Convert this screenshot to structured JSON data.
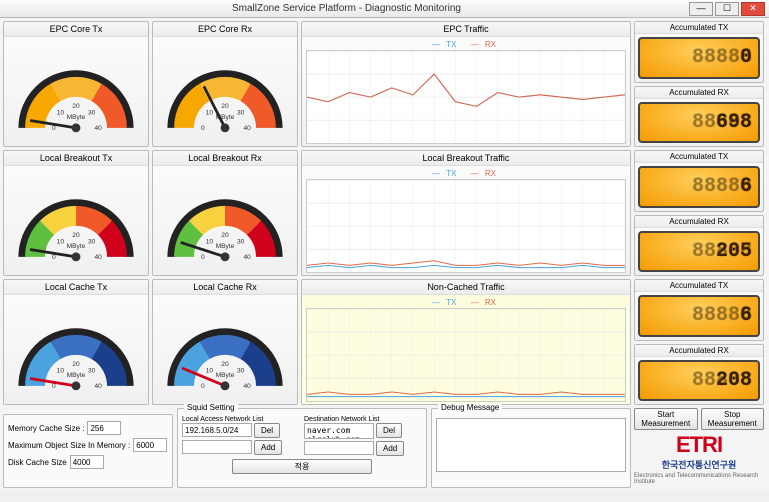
{
  "window": {
    "title": "SmallZone Service Platform - Diagnostic Monitoring"
  },
  "gauges": {
    "epc_tx": {
      "title": "EPC Core Tx",
      "value": 2,
      "max": 40,
      "unit": "MByte",
      "theme": "orange",
      "ticks": [
        0,
        10,
        20,
        30,
        40
      ],
      "arc_colors": [
        "#f6a800",
        "#f7b733",
        "#f05a28"
      ],
      "needle_color": "#222"
    },
    "epc_rx": {
      "title": "EPC Core Rx",
      "value": 14,
      "max": 40,
      "unit": "MByte",
      "theme": "orange",
      "ticks": [
        0,
        10,
        20,
        30,
        40
      ],
      "arc_colors": [
        "#f6a800",
        "#f7b733",
        "#f05a28"
      ],
      "needle_color": "#222"
    },
    "lb_tx": {
      "title": "Local Breakout Tx",
      "value": 2,
      "max": 40,
      "unit": "MByte",
      "theme": "rainbow",
      "ticks": [
        0,
        10,
        20,
        30,
        40
      ],
      "arc_colors": [
        "#5fbf3f",
        "#f7d23e",
        "#f05a28",
        "#d0021b"
      ],
      "needle_color": "#222"
    },
    "lb_rx": {
      "title": "Local Breakout Rx",
      "value": 4,
      "max": 40,
      "unit": "MByte",
      "theme": "rainbow",
      "ticks": [
        0,
        10,
        20,
        30,
        40
      ],
      "arc_colors": [
        "#5fbf3f",
        "#f7d23e",
        "#f05a28",
        "#d0021b"
      ],
      "needle_color": "#222"
    },
    "lc_tx": {
      "title": "Local Cache Tx",
      "value": 2,
      "max": 40,
      "unit": "MByte",
      "theme": "blue",
      "ticks": [
        0,
        10,
        20,
        30,
        40
      ],
      "arc_colors": [
        "#4aa3df",
        "#3b6fc1",
        "#1b3f8b"
      ],
      "needle_color": "#d0021b"
    },
    "lc_rx": {
      "title": "Local Cache Rx",
      "value": 5,
      "max": 40,
      "unit": "MByte",
      "theme": "blue",
      "ticks": [
        0,
        10,
        20,
        30,
        40
      ],
      "arc_colors": [
        "#4aa3df",
        "#3b6fc1",
        "#1b3f8b"
      ],
      "needle_color": "#d0021b"
    }
  },
  "charts": {
    "epc": {
      "title": "EPC Traffic",
      "ymax": 40,
      "ytick": 10,
      "xcount": 16,
      "bg": "#ffffff",
      "tx_color": "#4aa3df",
      "rx_color": "#e06a4a",
      "tx": [
        20,
        18,
        22,
        20,
        24,
        21,
        30,
        18,
        16,
        22,
        20,
        21,
        20,
        19,
        20,
        21
      ],
      "rx": [
        20,
        18,
        22,
        20,
        24,
        21,
        30,
        18,
        16,
        22,
        20,
        21,
        20,
        19,
        20,
        21
      ],
      "legend": {
        "tx": "TX",
        "rx": "RX"
      }
    },
    "lb": {
      "title": "Local Breakout Traffic",
      "ymax": 40,
      "ytick": 10,
      "xcount": 16,
      "bg": "#ffffff",
      "tx_color": "#4aa3df",
      "rx_color": "#e06a4a",
      "tx": [
        2,
        3,
        2,
        3,
        2,
        2,
        3,
        2,
        2,
        3,
        2,
        2,
        2,
        3,
        2,
        2
      ],
      "rx": [
        3,
        4,
        3,
        4,
        3,
        4,
        5,
        3,
        3,
        4,
        3,
        4,
        3,
        4,
        3,
        3
      ],
      "legend": {
        "tx": "TX",
        "rx": "RX"
      }
    },
    "nc": {
      "title": "Non-Cached Traffic",
      "ymax": 40,
      "ytick": 10,
      "xcount": 16,
      "bg": "#fffde0",
      "tx_color": "#4aa3df",
      "rx_color": "#e06a4a",
      "tx": [
        2,
        2,
        2,
        2,
        2,
        2,
        2,
        2,
        2,
        2,
        2,
        2,
        2,
        2,
        2,
        2
      ],
      "rx": [
        3,
        4,
        3,
        3,
        4,
        3,
        4,
        3,
        3,
        4,
        3,
        3,
        4,
        3,
        3,
        3
      ],
      "legend": {
        "tx": "TX",
        "rx": "RX"
      }
    }
  },
  "counters": {
    "r1_tx": {
      "title": "Accumulated TX",
      "value": "0"
    },
    "r1_rx": {
      "title": "Accumulated RX",
      "value": "698"
    },
    "r2_tx": {
      "title": "Accumulated TX",
      "value": "6"
    },
    "r2_rx": {
      "title": "Accumulated RX",
      "value": "205"
    },
    "r3_tx": {
      "title": "Accumulated TX",
      "value": "6"
    },
    "r3_rx": {
      "title": "Accumulated RX",
      "value": "208"
    }
  },
  "settings": {
    "mem_cache_label": "Memory Cache Size :",
    "mem_cache": "256",
    "max_obj_label": "Maximum Object Size In Memory :",
    "max_obj": "6000",
    "disk_cache_label": "Disk Cache Size",
    "disk_cache": "4000",
    "squid_title": "Squid Setting",
    "lan_title": "Local Access Network List",
    "lan_value": "192.168.5.0/24",
    "dest_title": "Destination Network List",
    "dest_value": "naver.com\nslrclub.com",
    "apply": "적용",
    "del": "Del",
    "add": "Add",
    "debug_title": "Debug Message"
  },
  "buttons": {
    "start": "Start\nMeasurement",
    "stop": "Stop\nMeasurement"
  },
  "logo": {
    "big": "ETRI",
    "kr": "한국전자통신연구원",
    "en": "Electronics and Telecommunications Research Institute"
  }
}
